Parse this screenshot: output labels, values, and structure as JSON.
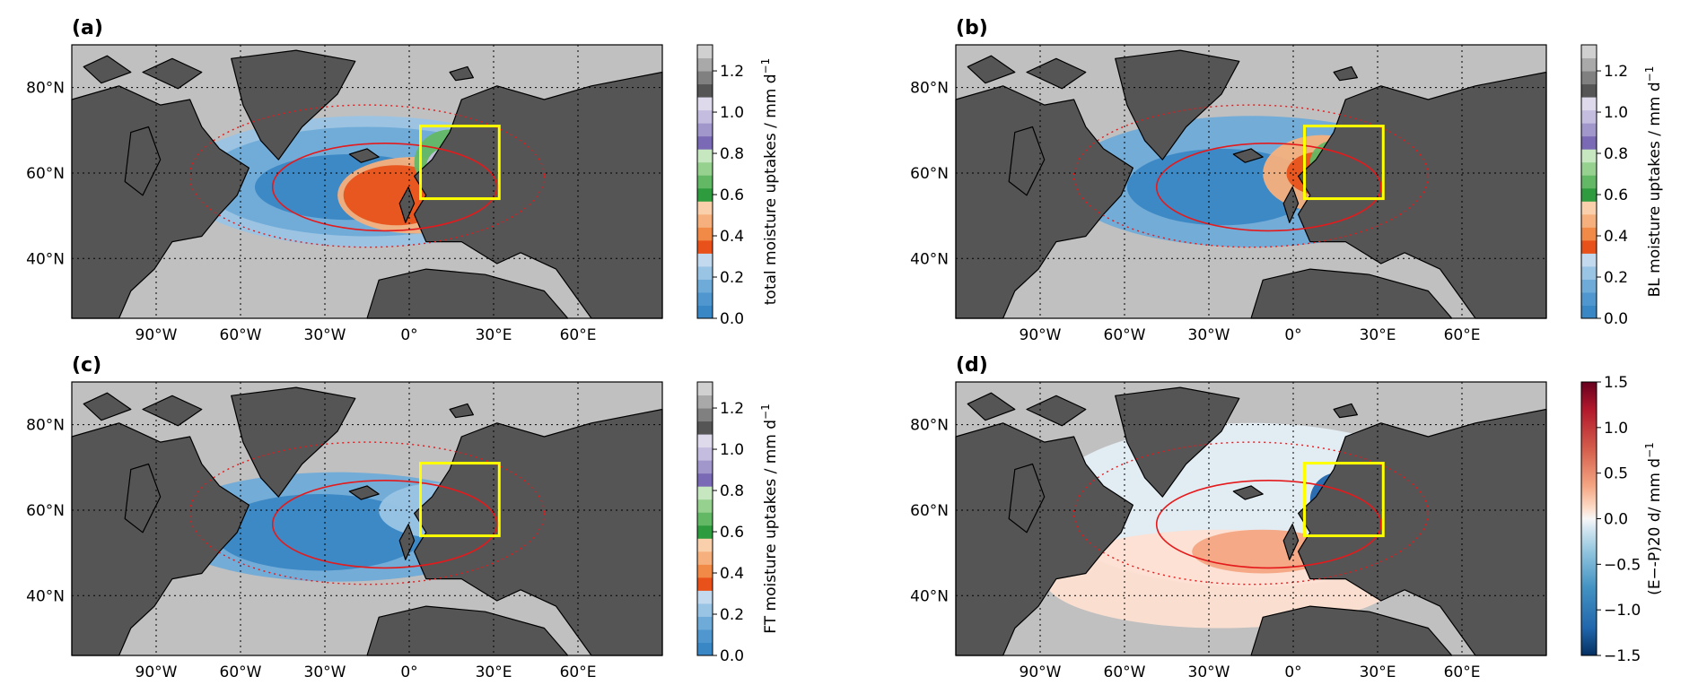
{
  "panels": [
    {
      "id": "a",
      "label": "(a)",
      "colorbar": {
        "label": "total moisture uptakes / mm d",
        "superscript": "−1",
        "type": "discrete",
        "ticks": [
          "0.0",
          "0.2",
          "0.4",
          "0.6",
          "0.8",
          "1.0",
          "1.2"
        ],
        "colors": [
          "#3a87c5",
          "#4f97ce",
          "#6fabd8",
          "#9ac4e4",
          "#c2d9ee",
          "#e8521a",
          "#f28a47",
          "#f6b07d",
          "#f9d0ab",
          "#2e9b3e",
          "#63b865",
          "#96d190",
          "#c6e7c0",
          "#7a6ab5",
          "#a197cb",
          "#c4bddf",
          "#dedaec",
          "#555555",
          "#808080",
          "#a9a9a9",
          "#d0d0d0"
        ]
      }
    },
    {
      "id": "b",
      "label": "(b)",
      "colorbar": {
        "label": "BL moisture uptakes / mm d",
        "superscript": "−1",
        "type": "discrete",
        "ticks": [
          "0.0",
          "0.2",
          "0.4",
          "0.6",
          "0.8",
          "1.0",
          "1.2"
        ],
        "colors": [
          "#3a87c5",
          "#4f97ce",
          "#6fabd8",
          "#9ac4e4",
          "#c2d9ee",
          "#e8521a",
          "#f28a47",
          "#f6b07d",
          "#f9d0ab",
          "#2e9b3e",
          "#63b865",
          "#96d190",
          "#c6e7c0",
          "#7a6ab5",
          "#a197cb",
          "#c4bddf",
          "#dedaec",
          "#555555",
          "#808080",
          "#a9a9a9",
          "#d0d0d0"
        ]
      }
    },
    {
      "id": "c",
      "label": "(c)",
      "colorbar": {
        "label": "FT moisture uptakes / mm d",
        "superscript": "−1",
        "type": "discrete",
        "ticks": [
          "0.0",
          "0.2",
          "0.4",
          "0.6",
          "0.8",
          "1.0",
          "1.2"
        ],
        "colors": [
          "#3a87c5",
          "#4f97ce",
          "#6fabd8",
          "#9ac4e4",
          "#c2d9ee",
          "#e8521a",
          "#f28a47",
          "#f6b07d",
          "#f9d0ab",
          "#2e9b3e",
          "#63b865",
          "#96d190",
          "#c6e7c0",
          "#7a6ab5",
          "#a197cb",
          "#c4bddf",
          "#dedaec",
          "#555555",
          "#808080",
          "#a9a9a9",
          "#d0d0d0"
        ]
      }
    },
    {
      "id": "d",
      "label": "(d)",
      "colorbar": {
        "label": "(E−-P)20 d/ mm d",
        "superscript": "−1",
        "type": "continuous",
        "ticks": [
          "1.5",
          "1.0",
          "0.5",
          "0.0",
          "−0.5",
          "−1.0",
          "−1.5"
        ],
        "colors": [
          "#67001f",
          "#b2182b",
          "#d6604d",
          "#f4a582",
          "#fddbc7",
          "#f7f7f7",
          "#d1e5f0",
          "#92c5de",
          "#4393c3",
          "#2166ac",
          "#053061"
        ]
      }
    }
  ],
  "map": {
    "lat_labels": [
      "80°N",
      "60°N",
      "40°N"
    ],
    "lon_labels": [
      "90°W",
      "60°W",
      "30°W",
      "0°",
      "30°E",
      "60°E"
    ],
    "lon_range": [
      -120,
      90
    ],
    "lat_range": [
      26,
      90
    ],
    "region_box": {
      "lon": [
        4,
        32
      ],
      "lat": [
        54,
        71
      ],
      "color": "#ffff00"
    },
    "colors": {
      "land": "#555555",
      "ocean": "#c0c0c0",
      "coast": "#000000",
      "grid": "#000000",
      "contour": "#e41a1c"
    }
  }
}
